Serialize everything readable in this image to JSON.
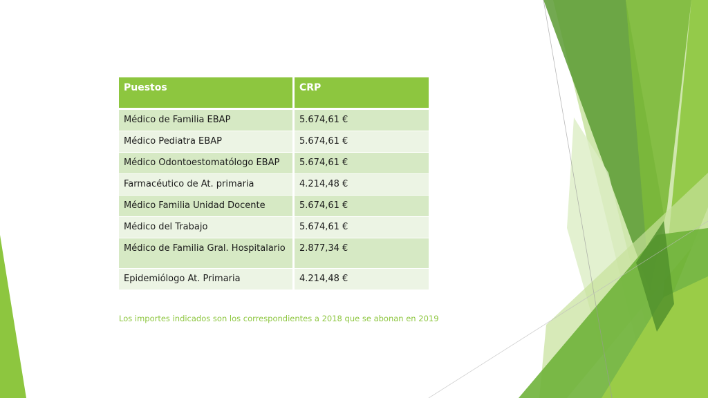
{
  "colors": {
    "accent": "#8dc63f",
    "row_odd": "#d6e9c4",
    "row_even": "#ecf4e4",
    "decor_dark": "#5a9a32",
    "decor_mid": "#7cb93a",
    "decor_light": "#c6e19a"
  },
  "table": {
    "headers": [
      "Puestos",
      "CRP"
    ],
    "rows": [
      {
        "puesto": "Médico de Familia EBAP",
        "crp": "5.674,61 €"
      },
      {
        "puesto": "Médico Pediatra EBAP",
        "crp": "5.674,61 €"
      },
      {
        "puesto": "Médico Odontoestomatólogo EBAP",
        "crp": "5.674,61 €"
      },
      {
        "puesto": "Farmacéutico de At. primaria",
        "crp": "4.214,48 €"
      },
      {
        "puesto": "Médico Familia Unidad Docente",
        "crp": "5.674,61 €"
      },
      {
        "puesto": "Médico del Trabajo",
        "crp": "5.674,61 €"
      },
      {
        "puesto": "Médico de Familia Gral. Hospitalario",
        "crp": "2.877,34 €"
      },
      {
        "puesto": "Epidemiólogo At. Primaria",
        "crp": "4.214,48 €"
      }
    ]
  },
  "footnote": "Los importes indicados son los correspondientes a 2018 que se abonan en 2019"
}
